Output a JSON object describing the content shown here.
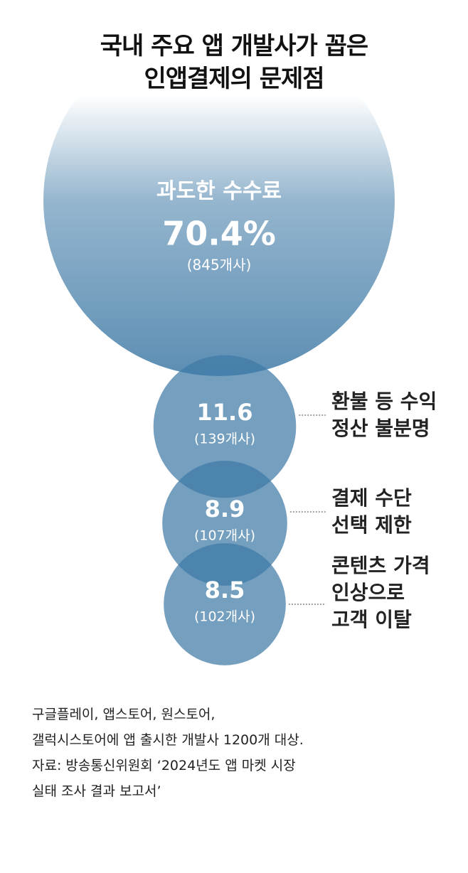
{
  "chart_data": {
    "type": "bubble",
    "title": "국내 주요 앱 개발사가 꼽은\n인앱결제의 문제점",
    "categories": [
      "과도한 수수료",
      "환불 등 수익\n정산 불분명",
      "결제 수단\n선택 제한",
      "콘텐츠 가격\n인상으로\n고객 이탈"
    ],
    "values": [
      70.4,
      11.6,
      8.9,
      8.5
    ],
    "value_labels": [
      "70.4%",
      "11.6",
      "8.9",
      "8.5"
    ],
    "count_labels": [
      "(845개사)",
      "(139개사)",
      "(107개사)",
      "(102개사)"
    ],
    "color": "#3f7aa6",
    "notes": [
      "구글플레이, 앱스토어, 원스토어,",
      "갤럭시스토어에 앱 출시한 개발사 1200개 대상.",
      "자료: 방송통신위원회 ‘2024년도 앱 마켓 시장",
      "실태 조사 결과 보고서’"
    ]
  }
}
